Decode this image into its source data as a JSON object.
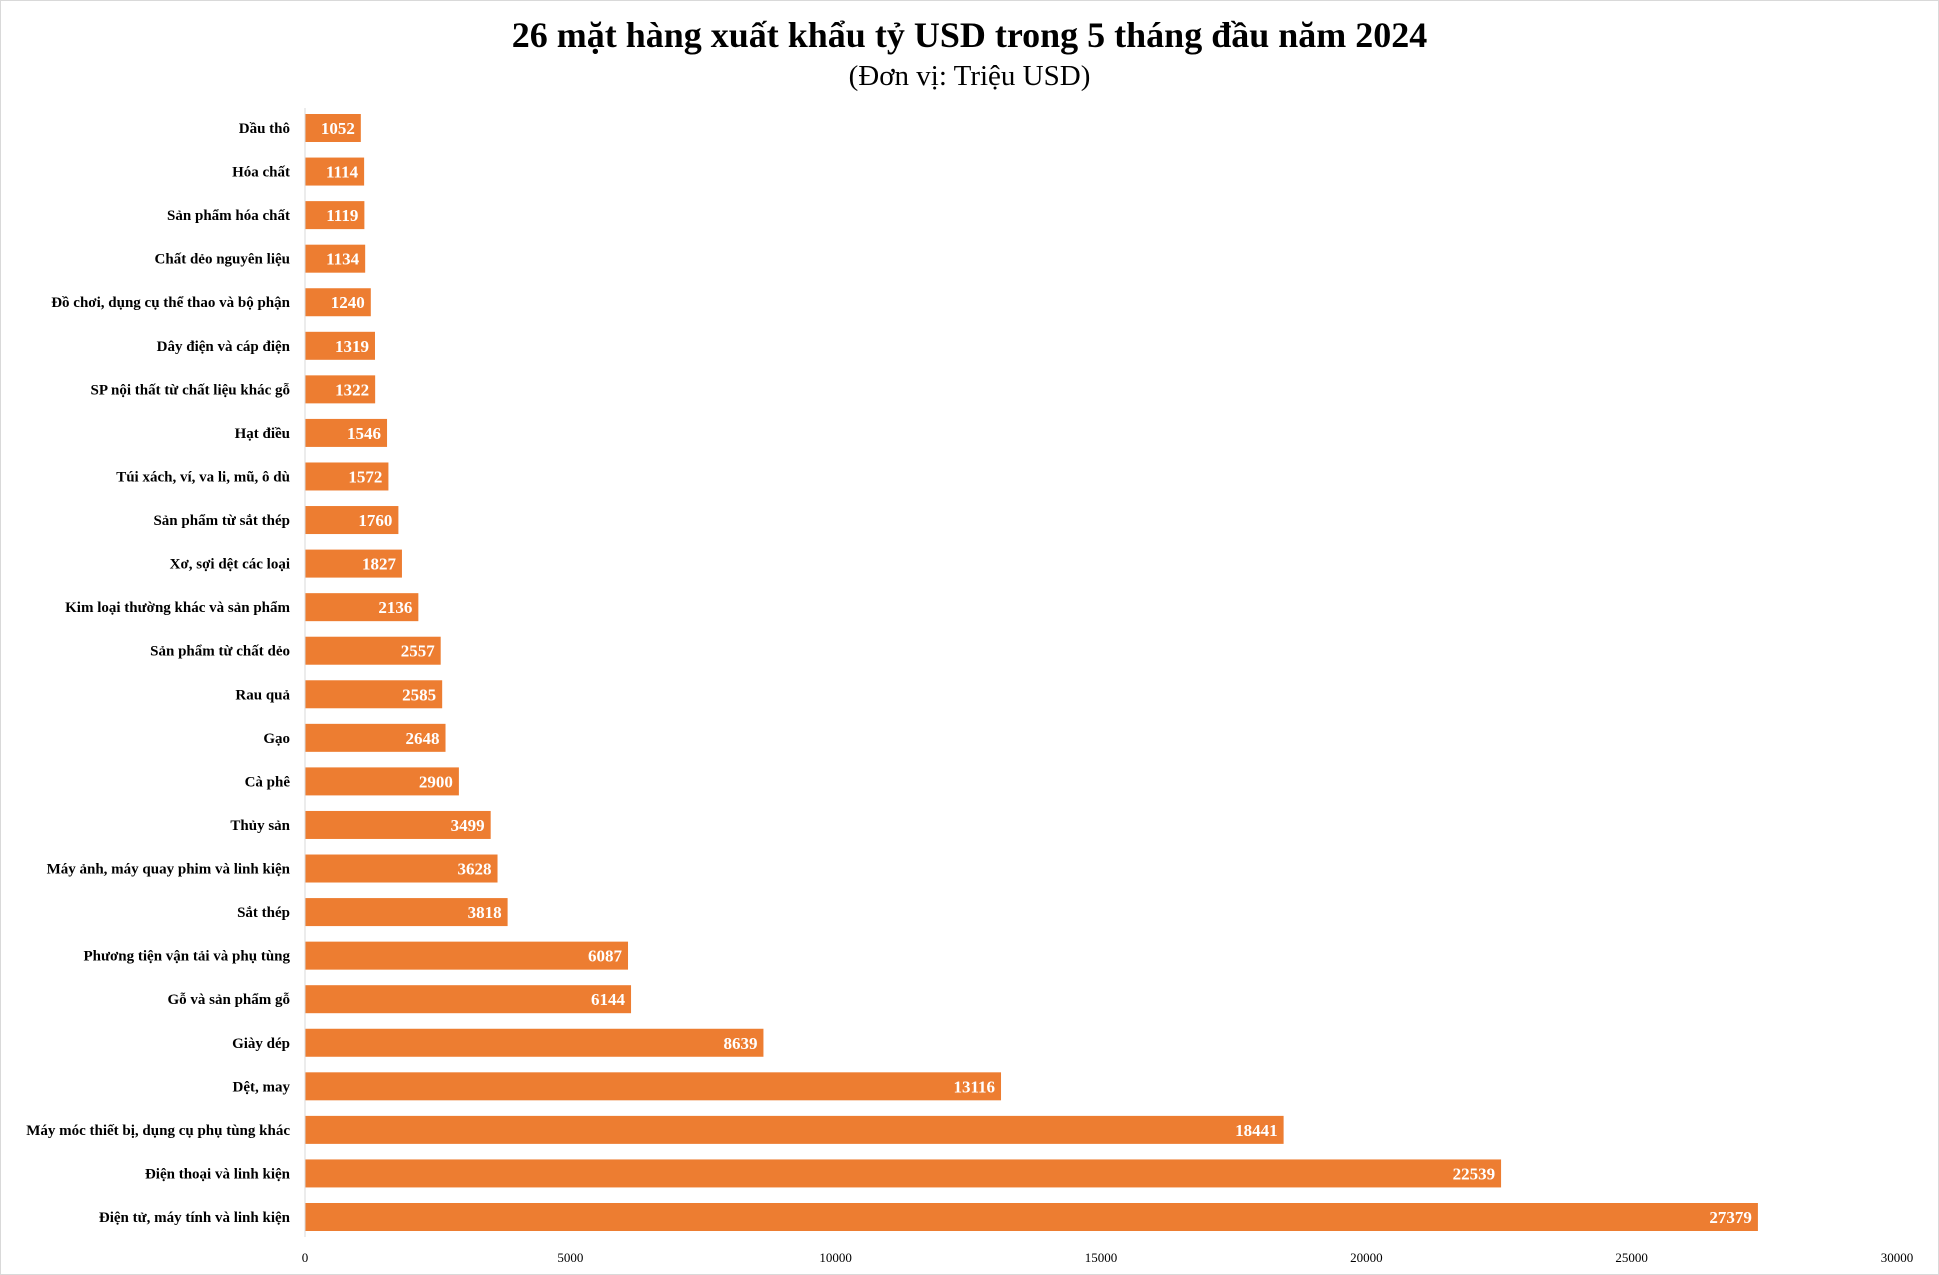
{
  "chart_data": {
    "type": "bar",
    "orientation": "horizontal",
    "title": "26 mặt hàng xuất khẩu tỷ USD trong 5 tháng đầu năm 2024",
    "subtitle": "(Đơn vị: Triệu USD)",
    "xlabel": "",
    "ylabel": "",
    "xlim": [
      0,
      30000
    ],
    "ticks": [
      "0",
      "5000",
      "10000",
      "15000",
      "20000",
      "25000",
      "30000"
    ],
    "tick_values": [
      0,
      5000,
      10000,
      15000,
      20000,
      25000,
      30000
    ],
    "grid": false,
    "bar_color": "#ED7D31",
    "categories": [
      "Dầu thô",
      "Hóa chất",
      "Sản phẩm hóa chất",
      "Chất dẻo nguyên liệu",
      "Đồ chơi, dụng cụ thể thao và bộ phận",
      "Dây điện và cáp điện",
      "SP nội thất từ chất liệu khác gỗ",
      "Hạt điều",
      "Túi xách, ví, va li, mũ, ô dù",
      "Sản phẩm từ sắt thép",
      "Xơ, sợi dệt các loại",
      "Kim loại thường khác và sản phẩm",
      "Sản phẩm từ chất dẻo",
      "Rau quả",
      "Gạo",
      "Cà phê",
      "Thủy sản",
      "Máy ảnh, máy quay phim và linh kiện",
      "Sắt thép",
      "Phương tiện vận tải và phụ tùng",
      "Gỗ và sản phẩm gỗ",
      "Giày dép",
      "Dệt, may",
      "Máy móc thiết bị, dụng cụ phụ tùng khác",
      "Điện thoại và linh kiện",
      "Điện tử, máy tính và linh kiện"
    ],
    "values": [
      1052,
      1114,
      1119,
      1134,
      1240,
      1319,
      1322,
      1546,
      1572,
      1760,
      1827,
      2136,
      2557,
      2585,
      2648,
      2900,
      3499,
      3628,
      3818,
      6087,
      6144,
      8639,
      13116,
      18441,
      22539,
      27379
    ]
  }
}
